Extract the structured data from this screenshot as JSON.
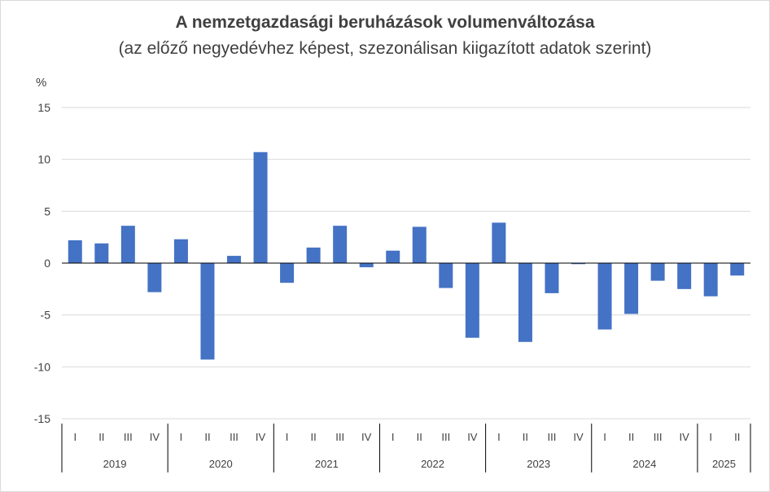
{
  "chart_data": {
    "type": "bar",
    "title": "A nemzetgazdasági beruházások volumenváltozása",
    "subtitle": "(az előző negyedévhez képest, szezonálisan kiigazított adatok szerint)",
    "ylabel": "%",
    "xlabel": "",
    "ylim": [
      -15,
      15
    ],
    "yticks": [
      15,
      10,
      5,
      0,
      -5,
      -10,
      -15
    ],
    "grid": true,
    "legend": "none",
    "bar_color": "#4472c4",
    "years": [
      {
        "year": "2019",
        "quarters": [
          "I",
          "II",
          "III",
          "IV"
        ]
      },
      {
        "year": "2020",
        "quarters": [
          "I",
          "II",
          "III",
          "IV"
        ]
      },
      {
        "year": "2021",
        "quarters": [
          "I",
          "II",
          "III",
          "IV"
        ]
      },
      {
        "year": "2022",
        "quarters": [
          "I",
          "II",
          "III",
          "IV"
        ]
      },
      {
        "year": "2023",
        "quarters": [
          "I",
          "II",
          "III",
          "IV"
        ]
      },
      {
        "year": "2024",
        "quarters": [
          "I",
          "II",
          "III",
          "IV"
        ]
      },
      {
        "year": "2025",
        "quarters": [
          "I",
          "II"
        ]
      }
    ],
    "values": [
      2.2,
      1.9,
      3.6,
      -2.8,
      2.3,
      -9.3,
      0.7,
      10.7,
      -1.9,
      1.5,
      3.6,
      -0.4,
      1.2,
      3.5,
      -2.4,
      -7.2,
      3.9,
      -7.6,
      -2.9,
      -0.1,
      -6.4,
      -4.9,
      -1.7,
      -2.5,
      -3.2,
      -1.2
    ]
  }
}
